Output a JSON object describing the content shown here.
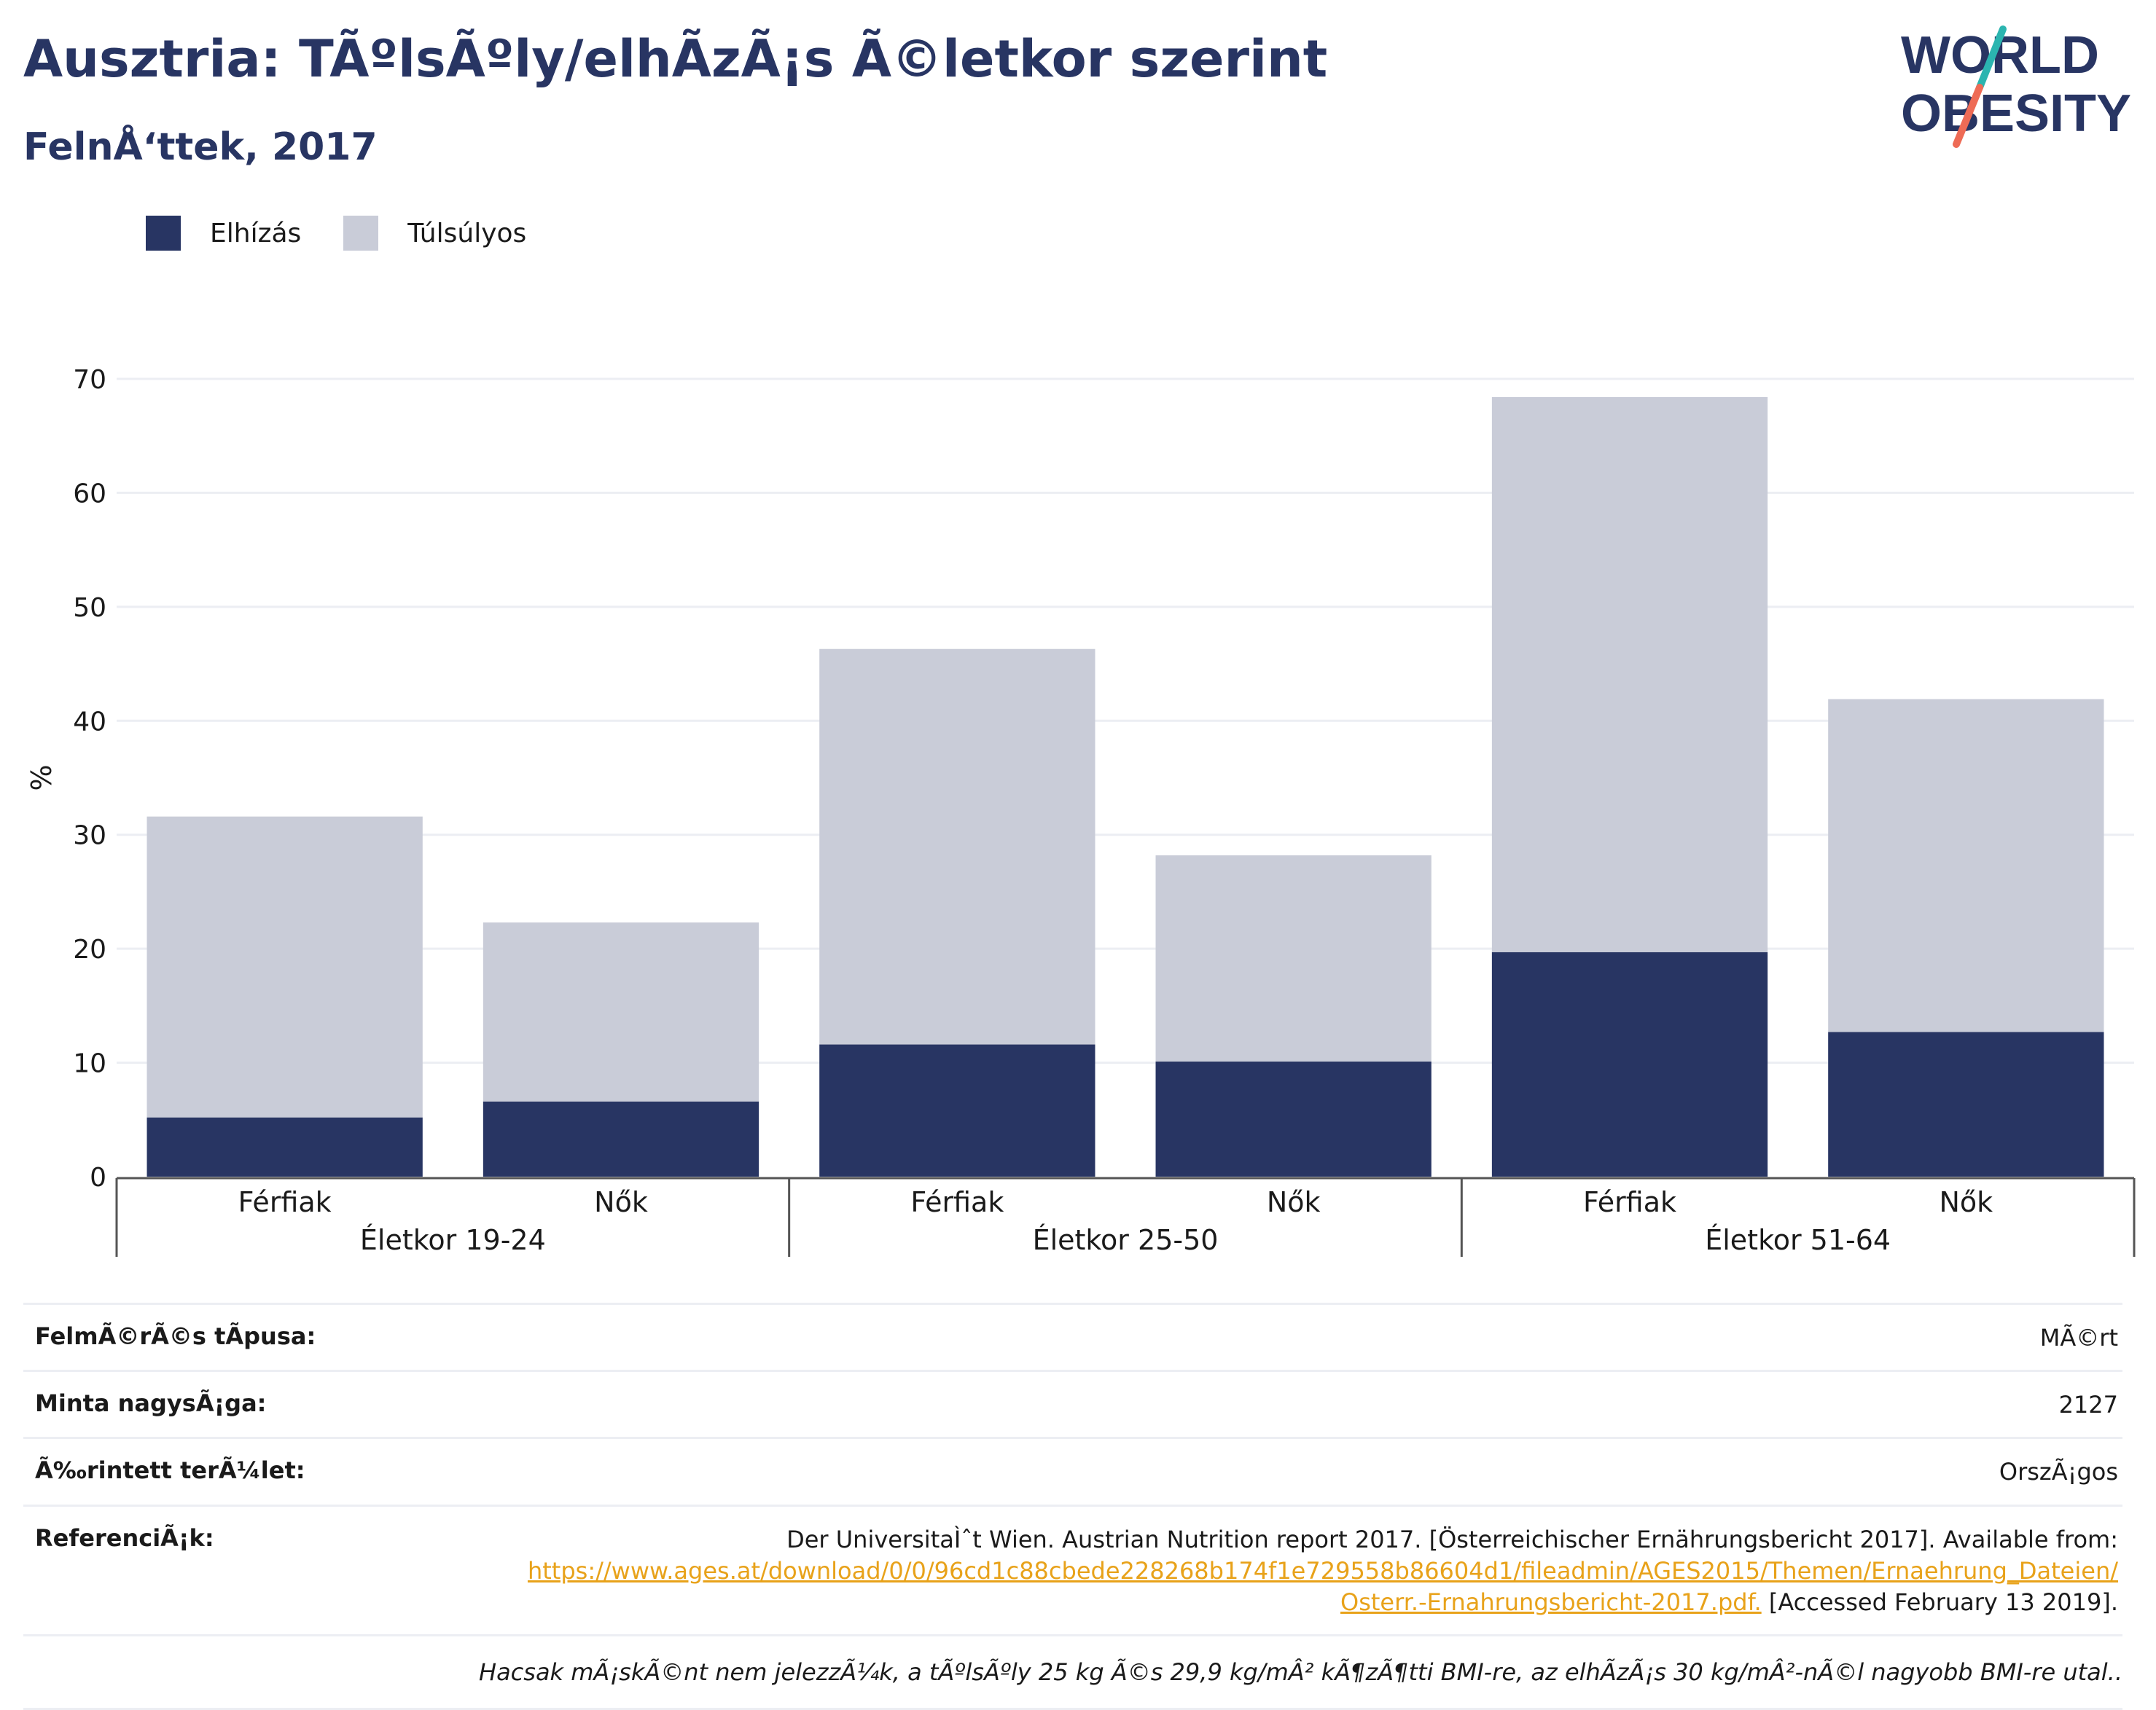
{
  "header": {
    "title": "Ausztria: TÃºlsÃºly/elhÃ­zÃ¡s Ã©letkor szerint",
    "subtitle": "FelnÅ‘ttek, 2017"
  },
  "logo": {
    "line1": "WORLD",
    "line2": "OBESITY"
  },
  "colors": {
    "obesity": "#283563",
    "overweight": "#c9ccd8",
    "title": "#283563",
    "link": "#e8a21a",
    "grid": "#eceef3",
    "axis": "#666666"
  },
  "chart_data": {
    "type": "bar",
    "stacked": true,
    "ylabel": "%",
    "ylim": [
      0,
      70
    ],
    "yticks": [
      0,
      10,
      20,
      30,
      40,
      50,
      60,
      70
    ],
    "grid": true,
    "legend_position": "top-left",
    "groups": [
      "Életkor 19-24",
      "Életkor 25-50",
      "Életkor 51-64"
    ],
    "categories": [
      "Férfiak",
      "Nők",
      "Férfiak",
      "Nők",
      "Férfiak",
      "Nők"
    ],
    "series": [
      {
        "name": "Elhízás",
        "values": [
          5.2,
          6.6,
          11.6,
          10.1,
          19.7,
          12.7
        ]
      },
      {
        "name": "Túlsúlyos",
        "values": [
          26.4,
          15.7,
          34.7,
          18.1,
          48.7,
          29.2
        ]
      }
    ]
  },
  "meta": [
    {
      "label": "FelmÃ©rÃ©s tÃpusa:",
      "value": "MÃ©rt"
    },
    {
      "label": "Minta nagysÃ¡ga:",
      "value": "2127"
    },
    {
      "label": "Ã‰rintett terÃ¼let:",
      "value": "OrszÃ¡gos"
    },
    {
      "label": "ReferenciÃ¡k:",
      "value": "Der UniversitaÌˆt Wien. Austrian Nutrition report 2017. [Österreichischer Ernährungsbericht 2017]. Available from:",
      "link": "https://www.ages.at/download/0/0/96cd1c88cbede228268b174f1e729558b86604d1/fileadmin/AGES2015/Themen/Ernaehrung_Dateien/Osterr.-Ernahrungsbericht-2017.pdf.",
      "suffix": "[Accessed February 13 2019]."
    }
  ],
  "note": "Hacsak mÃ¡skÃ©nt nem jelezzÃ¼k, a tÃºlsÃºly 25 kg Ã©s 29,9 kg/mÂ² kÃ¶zÃ¶tti BMI-re, az elhÃ­zÃ¡s 30 kg/mÂ²-nÃ©l nagyobb BMI-re utal.."
}
